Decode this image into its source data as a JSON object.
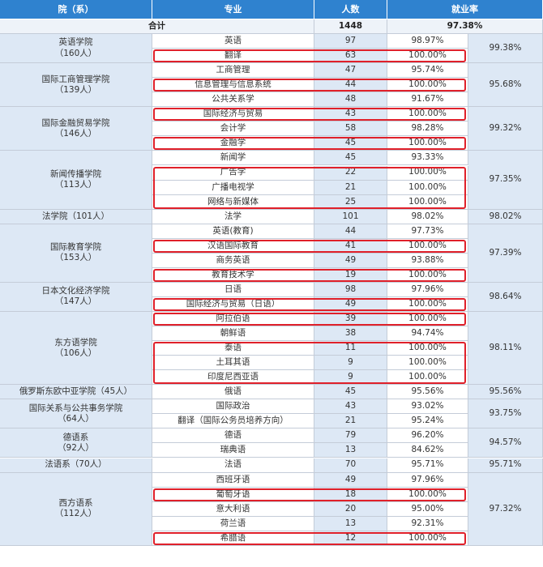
{
  "colors": {
    "header_bg": "#2f82cf",
    "college_bg": "#dde8f5",
    "highlight": "#e0202a"
  },
  "headers": [
    "院（系）",
    "专业",
    "人数",
    "就业率"
  ],
  "total": {
    "label": "合计",
    "count": "1448",
    "rate": "97.38%"
  },
  "colleges": [
    {
      "name": "英语学院",
      "count": "（160人）",
      "rate": "99.38%",
      "majors": [
        {
          "name": "英语",
          "count": "97",
          "rate": "98.97%",
          "highlight": false
        },
        {
          "name": "翻译",
          "count": "63",
          "rate": "100.00%",
          "highlight": true
        }
      ]
    },
    {
      "name": "国际工商管理学院",
      "count": "（139人）",
      "rate": "95.68%",
      "majors": [
        {
          "name": "工商管理",
          "count": "47",
          "rate": "95.74%",
          "highlight": false
        },
        {
          "name": "信息管理与信息系统",
          "count": "44",
          "rate": "100.00%",
          "highlight": true
        },
        {
          "name": "公共关系学",
          "count": "48",
          "rate": "91.67%",
          "highlight": false
        }
      ]
    },
    {
      "name": "国际金融贸易学院",
      "count": "（146人）",
      "rate": "99.32%",
      "majors": [
        {
          "name": "国际经济与贸易",
          "count": "43",
          "rate": "100.00%",
          "highlight": true
        },
        {
          "name": "会计学",
          "count": "58",
          "rate": "98.28%",
          "highlight": false
        },
        {
          "name": "金融学",
          "count": "45",
          "rate": "100.00%",
          "highlight": true
        }
      ]
    },
    {
      "name": "新闻传播学院",
      "count": "（113人）",
      "rate": "97.35%",
      "majors": [
        {
          "name": "新闻学",
          "count": "45",
          "rate": "93.33%",
          "highlight": false
        },
        {
          "name": "广告学",
          "count": "22",
          "rate": "100.00%",
          "highlight": true
        },
        {
          "name": "广播电视学",
          "count": "21",
          "rate": "100.00%",
          "highlight": true
        },
        {
          "name": "网络与新媒体",
          "count": "25",
          "rate": "100.00%",
          "highlight": true
        }
      ]
    },
    {
      "name": "法学院（101人）",
      "count": "",
      "rate": "98.02%",
      "majors": [
        {
          "name": "法学",
          "count": "101",
          "rate": "98.02%",
          "highlight": false
        }
      ]
    },
    {
      "name": "国际教育学院",
      "count": "（153人）",
      "rate": "97.39%",
      "majors": [
        {
          "name": "英语(教育)",
          "count": "44",
          "rate": "97.73%",
          "highlight": false
        },
        {
          "name": "汉语国际教育",
          "count": "41",
          "rate": "100.00%",
          "highlight": true
        },
        {
          "name": "商务英语",
          "count": "49",
          "rate": "93.88%",
          "highlight": false
        },
        {
          "name": "教育技术学",
          "count": "19",
          "rate": "100.00%",
          "highlight": true
        }
      ]
    },
    {
      "name": "日本文化经济学院",
      "count": "（147人）",
      "rate": "98.64%",
      "majors": [
        {
          "name": "日语",
          "count": "98",
          "rate": "97.96%",
          "highlight": false
        },
        {
          "name": "国际经济与贸易（日语）",
          "count": "49",
          "rate": "100.00%",
          "highlight": true
        }
      ]
    },
    {
      "name": "东方语学院",
      "count": "（106人）",
      "rate": "98.11%",
      "majors": [
        {
          "name": "阿拉伯语",
          "count": "39",
          "rate": "100.00%",
          "highlight": true
        },
        {
          "name": "朝鲜语",
          "count": "38",
          "rate": "94.74%",
          "highlight": false
        },
        {
          "name": "泰语",
          "count": "11",
          "rate": "100.00%",
          "highlight": true
        },
        {
          "name": "土耳其语",
          "count": "9",
          "rate": "100.00%",
          "highlight": true
        },
        {
          "name": "印度尼西亚语",
          "count": "9",
          "rate": "100.00%",
          "highlight": true
        }
      ]
    },
    {
      "name": "俄罗斯东欧中亚学院（45人）",
      "count": "",
      "rate": "95.56%",
      "majors": [
        {
          "name": "俄语",
          "count": "45",
          "rate": "95.56%",
          "highlight": false
        }
      ]
    },
    {
      "name": "国际关系与公共事务学院",
      "count": "（64人）",
      "rate": "93.75%",
      "majors": [
        {
          "name": "国际政治",
          "count": "43",
          "rate": "93.02%",
          "highlight": false
        },
        {
          "name": "翻译（国际公务员培养方向）",
          "count": "21",
          "rate": "95.24%",
          "highlight": false
        }
      ]
    },
    {
      "name": "德语系",
      "count": "（92人）",
      "rate": "94.57%",
      "majors": [
        {
          "name": "德语",
          "count": "79",
          "rate": "96.20%",
          "highlight": false
        },
        {
          "name": "瑞典语",
          "count": "13",
          "rate": "84.62%",
          "highlight": false
        }
      ]
    },
    {
      "name": "法语系（70人）",
      "count": "",
      "rate": "95.71%",
      "majors": [
        {
          "name": "法语",
          "count": "70",
          "rate": "95.71%",
          "highlight": false
        }
      ]
    },
    {
      "name": "西方语系",
      "count": "（112人）",
      "rate": "97.32%",
      "majors": [
        {
          "name": "西班牙语",
          "count": "49",
          "rate": "97.96%",
          "highlight": false
        },
        {
          "name": "葡萄牙语",
          "count": "18",
          "rate": "100.00%",
          "highlight": true
        },
        {
          "name": "意大利语",
          "count": "20",
          "rate": "95.00%",
          "highlight": false
        },
        {
          "name": "荷兰语",
          "count": "13",
          "rate": "92.31%",
          "highlight": false
        },
        {
          "name": "希腊语",
          "count": "12",
          "rate": "100.00%",
          "highlight": true
        }
      ]
    }
  ]
}
